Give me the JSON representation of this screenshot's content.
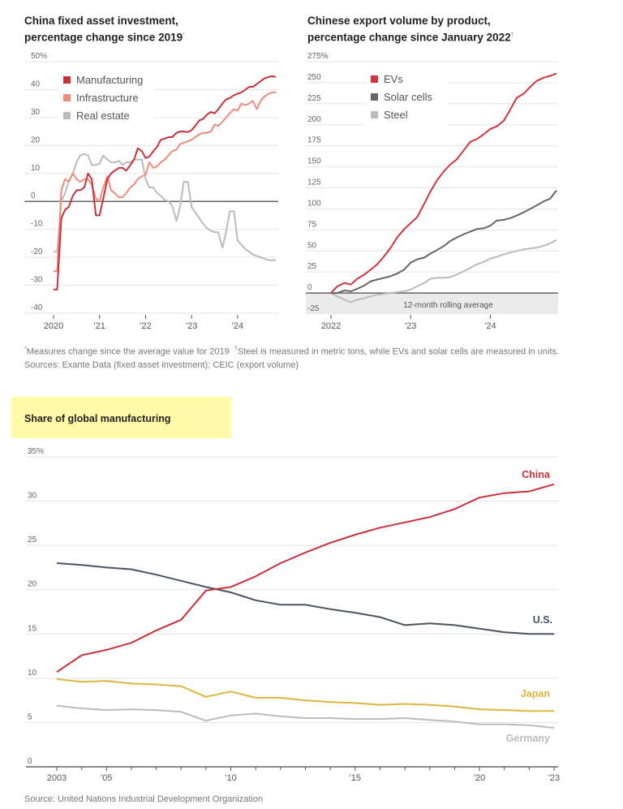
{
  "chart_data": [
    {
      "id": "fai",
      "type": "line",
      "title": "China fixed asset investment, percentage change since 2019",
      "title_line1": "China fixed asset investment,",
      "title_line2": "percentage change since 2019",
      "title_marker": "*",
      "xlabel": "",
      "ylabel": "",
      "ylim": [
        -40,
        50
      ],
      "yticks": [
        50,
        40,
        30,
        20,
        10,
        0,
        -10,
        -20,
        -30,
        -40
      ],
      "ytick_labels": [
        "50%",
        "40",
        "30",
        "20",
        "10",
        "0",
        "-10",
        "-20",
        "-30",
        "-40"
      ],
      "xlim": [
        2020.0,
        2024.83
      ],
      "xticks": [
        2020,
        2021,
        2022,
        2023,
        2024
      ],
      "xtick_labels": [
        "2020",
        "'21",
        "'22",
        "'23",
        "'24"
      ],
      "grid": true,
      "legend_position": "top-left",
      "series": [
        {
          "name": "Manufacturing",
          "color": "#c8313b",
          "x": [
            2020.0,
            2020.08,
            2020.17,
            2020.25,
            2020.33,
            2020.42,
            2020.5,
            2020.58,
            2020.67,
            2020.75,
            2020.83,
            2020.92,
            2021.0,
            2021.08,
            2021.17,
            2021.25,
            2021.33,
            2021.42,
            2021.5,
            2021.58,
            2021.67,
            2021.75,
            2021.83,
            2021.92,
            2022.0,
            2022.08,
            2022.17,
            2022.25,
            2022.33,
            2022.42,
            2022.5,
            2022.58,
            2022.67,
            2022.75,
            2022.83,
            2022.92,
            2023.0,
            2023.08,
            2023.17,
            2023.25,
            2023.33,
            2023.42,
            2023.5,
            2023.58,
            2023.67,
            2023.75,
            2023.83,
            2023.92,
            2024.0,
            2024.08,
            2024.17,
            2024.25,
            2024.33,
            2024.42,
            2024.5,
            2024.58,
            2024.67,
            2024.75,
            2024.83
          ],
          "values": [
            -31.5,
            -31.5,
            -6,
            -3,
            -2,
            2,
            4,
            4,
            5,
            10,
            8,
            -5,
            -5,
            1,
            8,
            10,
            11,
            12,
            12,
            11,
            13,
            15,
            19,
            18,
            15.5,
            16,
            18,
            19.5,
            22,
            22.5,
            23,
            23,
            24.5,
            25,
            25,
            24.8,
            25.5,
            27,
            29,
            29.5,
            31,
            32,
            31.5,
            33,
            35,
            36.5,
            37,
            38,
            38.5,
            39,
            40,
            41,
            41,
            42,
            43,
            44,
            44.5,
            44.8,
            44.5
          ]
        },
        {
          "name": "Infrastructure",
          "color": "#f08a7a",
          "x": [
            2020.0,
            2020.08,
            2020.17,
            2020.25,
            2020.33,
            2020.42,
            2020.5,
            2020.58,
            2020.67,
            2020.75,
            2020.83,
            2020.92,
            2021.0,
            2021.08,
            2021.17,
            2021.25,
            2021.33,
            2021.42,
            2021.5,
            2021.58,
            2021.67,
            2021.75,
            2021.83,
            2021.92,
            2022.0,
            2022.08,
            2022.17,
            2022.25,
            2022.33,
            2022.42,
            2022.5,
            2022.58,
            2022.67,
            2022.75,
            2022.83,
            2022.92,
            2023.0,
            2023.08,
            2023.17,
            2023.25,
            2023.33,
            2023.42,
            2023.5,
            2023.58,
            2023.67,
            2023.75,
            2023.83,
            2023.92,
            2024.0,
            2024.08,
            2024.17,
            2024.25,
            2024.33,
            2024.42,
            2024.5,
            2024.58,
            2024.67,
            2024.75,
            2024.83
          ],
          "values": [
            -25,
            -25,
            4,
            8,
            7,
            10,
            8,
            7,
            8,
            8,
            6,
            1,
            0,
            5,
            9,
            4,
            3,
            1.5,
            1.5,
            3,
            5,
            6,
            8,
            9,
            9.5,
            14,
            12,
            12.5,
            14,
            15,
            16.5,
            18,
            18.5,
            20.5,
            21,
            21.5,
            22,
            23,
            24,
            24.5,
            24.5,
            25,
            27.5,
            27,
            28.5,
            30,
            31.5,
            33,
            32.5,
            35,
            34.5,
            35,
            36,
            33,
            36,
            37.5,
            38.5,
            39,
            39
          ]
        },
        {
          "name": "Real estate",
          "color": "#bbbbbb",
          "x": [
            2020.0,
            2020.08,
            2020.17,
            2020.25,
            2020.33,
            2020.42,
            2020.5,
            2020.58,
            2020.67,
            2020.75,
            2020.83,
            2020.92,
            2021.0,
            2021.08,
            2021.17,
            2021.25,
            2021.33,
            2021.42,
            2021.5,
            2021.58,
            2021.67,
            2021.75,
            2021.83,
            2021.92,
            2022.0,
            2022.08,
            2022.17,
            2022.25,
            2022.33,
            2022.42,
            2022.5,
            2022.58,
            2022.67,
            2022.75,
            2022.83,
            2022.92,
            2023.0,
            2023.08,
            2023.17,
            2023.25,
            2023.33,
            2023.42,
            2023.5,
            2023.58,
            2023.67,
            2023.75,
            2023.83,
            2023.92,
            2024.0,
            2024.08,
            2024.17,
            2024.25,
            2024.33,
            2024.42,
            2024.5,
            2024.58,
            2024.67,
            2024.75,
            2024.83
          ],
          "values": [
            -18,
            -18,
            0,
            3,
            7,
            10,
            14,
            16.5,
            17,
            16.5,
            13,
            13,
            13.5,
            16.5,
            15,
            14,
            14,
            14.5,
            13,
            14,
            14,
            15,
            15,
            15,
            8,
            5,
            5,
            3,
            2,
            0.5,
            0,
            -1.5,
            -7,
            -2,
            7,
            7,
            -2,
            -4,
            -6,
            -8,
            -9.5,
            -10.5,
            -11,
            -11,
            -16.5,
            -11,
            -3.5,
            -3.5,
            -14,
            -15.5,
            -17,
            -18,
            -19,
            -19.5,
            -20,
            -20.5,
            -21,
            -21,
            -21
          ]
        }
      ]
    },
    {
      "id": "exports",
      "type": "line",
      "title": "Chinese export volume by product, percentage change since January 2022",
      "title_line1": "Chinese export volume by product,",
      "title_line2": "percentage change since January 2022",
      "title_marker": "†",
      "xlabel": "",
      "ylabel": "",
      "ylim": [
        -25,
        275
      ],
      "yticks": [
        275,
        250,
        225,
        200,
        175,
        150,
        125,
        100,
        75,
        50,
        25,
        0,
        -25
      ],
      "ytick_labels": [
        "275%",
        "250",
        "225",
        "200",
        "175",
        "150",
        "125",
        "100",
        "75",
        "50",
        "25",
        "0",
        "-25"
      ],
      "xlim": [
        2022.0,
        2024.83
      ],
      "xticks": [
        2022,
        2023,
        2024
      ],
      "xtick_labels": [
        "2022",
        "'23",
        "'24"
      ],
      "grid": true,
      "legend_position": "top-left",
      "annotation": "12-month rolling average",
      "series": [
        {
          "name": "EVs",
          "color": "#d0343f",
          "x": [
            2022.0,
            2022.08,
            2022.17,
            2022.25,
            2022.33,
            2022.42,
            2022.5,
            2022.58,
            2022.67,
            2022.75,
            2022.83,
            2022.92,
            2023.0,
            2023.08,
            2023.17,
            2023.25,
            2023.33,
            2023.42,
            2023.5,
            2023.58,
            2023.67,
            2023.75,
            2023.83,
            2023.92,
            2024.0,
            2024.08,
            2024.17,
            2024.25,
            2024.33,
            2024.42,
            2024.5,
            2024.58,
            2024.67,
            2024.75,
            2024.83
          ],
          "values": [
            0,
            8,
            12,
            10,
            17,
            22,
            28,
            34,
            44,
            54,
            66,
            76,
            83,
            90,
            106,
            121,
            134,
            145,
            153,
            159,
            170,
            180,
            183,
            189,
            195,
            198,
            205,
            218,
            232,
            237,
            245,
            252,
            256,
            258,
            261
          ]
        },
        {
          "name": "Solar cells",
          "color": "#666666",
          "x": [
            2022.0,
            2022.08,
            2022.17,
            2022.25,
            2022.33,
            2022.42,
            2022.5,
            2022.58,
            2022.67,
            2022.75,
            2022.83,
            2022.92,
            2023.0,
            2023.08,
            2023.17,
            2023.25,
            2023.33,
            2023.42,
            2023.5,
            2023.58,
            2023.67,
            2023.75,
            2023.83,
            2023.92,
            2024.0,
            2024.08,
            2024.17,
            2024.25,
            2024.33,
            2024.42,
            2024.5,
            2024.58,
            2024.67,
            2024.75,
            2024.83
          ],
          "values": [
            0,
            0,
            3,
            2,
            5,
            9,
            14,
            16,
            18,
            20,
            23,
            28,
            36,
            40,
            42,
            47,
            51,
            56,
            62,
            66,
            70,
            73,
            76,
            77,
            80,
            86,
            87,
            89,
            92,
            96,
            100,
            104,
            109,
            112,
            122
          ]
        },
        {
          "name": "Steel",
          "color": "#bbbbbb",
          "x": [
            2022.0,
            2022.08,
            2022.17,
            2022.25,
            2022.33,
            2022.42,
            2022.5,
            2022.58,
            2022.67,
            2022.75,
            2022.83,
            2022.92,
            2023.0,
            2023.08,
            2023.17,
            2023.25,
            2023.33,
            2023.42,
            2023.5,
            2023.58,
            2023.67,
            2023.75,
            2023.83,
            2023.92,
            2024.0,
            2024.08,
            2024.17,
            2024.25,
            2024.33,
            2024.42,
            2024.5,
            2024.58,
            2024.67,
            2024.75,
            2024.83
          ],
          "values": [
            0,
            -4,
            -8,
            -11,
            -8,
            -6,
            -4,
            -2,
            -1,
            0,
            1,
            2,
            4,
            8,
            12,
            17,
            18,
            18,
            19,
            22,
            26,
            30,
            34,
            37,
            41,
            43,
            46,
            48,
            50,
            52,
            53,
            54,
            56,
            59,
            63
          ]
        }
      ]
    },
    {
      "id": "share",
      "type": "line",
      "title": "Share of global manufacturing",
      "xlabel": "",
      "ylabel": "",
      "ylim": [
        0,
        35
      ],
      "yticks": [
        35,
        30,
        25,
        20,
        15,
        10,
        5,
        0
      ],
      "ytick_labels": [
        "35%",
        "30",
        "25",
        "20",
        "15",
        "10",
        "5",
        "0"
      ],
      "xlim": [
        2003,
        2023
      ],
      "xticks": [
        2003,
        2005,
        2010,
        2015,
        2020,
        2023
      ],
      "xtick_labels": [
        "2003",
        "'05",
        "'10",
        "'15",
        "'20",
        "'23"
      ],
      "minor_xticks": [
        2004,
        2006,
        2007,
        2008,
        2009,
        2011,
        2012,
        2013,
        2014,
        2016,
        2017,
        2018,
        2019,
        2021,
        2022
      ],
      "grid": true,
      "legend_position": "inline-right",
      "series": [
        {
          "name": "China",
          "color": "#c8313b",
          "x": [
            2003,
            2004,
            2005,
            2006,
            2007,
            2008,
            2009,
            2010,
            2011,
            2012,
            2013,
            2014,
            2015,
            2016,
            2017,
            2018,
            2019,
            2020,
            2021,
            2022,
            2023
          ],
          "values": [
            10.7,
            12.6,
            13.2,
            14.0,
            15.4,
            16.6,
            19.9,
            20.3,
            21.5,
            23.0,
            24.2,
            25.3,
            26.2,
            27.0,
            27.6,
            28.2,
            29.1,
            30.4,
            30.9,
            31.1,
            31.9
          ]
        },
        {
          "name": "U.S.",
          "color": "#4a5263",
          "x": [
            2003,
            2004,
            2005,
            2006,
            2007,
            2008,
            2009,
            2010,
            2011,
            2012,
            2013,
            2014,
            2015,
            2016,
            2017,
            2018,
            2019,
            2020,
            2021,
            2022,
            2023
          ],
          "values": [
            23.0,
            22.8,
            22.5,
            22.3,
            21.7,
            21.0,
            20.3,
            19.7,
            18.8,
            18.3,
            18.3,
            17.8,
            17.4,
            16.9,
            16.0,
            16.2,
            16.0,
            15.6,
            15.2,
            15.0,
            15.0
          ]
        },
        {
          "name": "Japan",
          "color": "#d9b740",
          "x": [
            2003,
            2004,
            2005,
            2006,
            2007,
            2008,
            2009,
            2010,
            2011,
            2012,
            2013,
            2014,
            2015,
            2016,
            2017,
            2018,
            2019,
            2020,
            2021,
            2022,
            2023
          ],
          "values": [
            9.9,
            9.6,
            9.7,
            9.4,
            9.3,
            9.1,
            7.9,
            8.5,
            7.8,
            7.8,
            7.5,
            7.3,
            7.2,
            7.0,
            7.1,
            7.0,
            6.8,
            6.5,
            6.4,
            6.3,
            6.3
          ]
        },
        {
          "name": "Germany",
          "color": "#bbbbbb",
          "x": [
            2003,
            2004,
            2005,
            2006,
            2007,
            2008,
            2009,
            2010,
            2011,
            2012,
            2013,
            2014,
            2015,
            2016,
            2017,
            2018,
            2019,
            2020,
            2021,
            2022,
            2023
          ],
          "values": [
            6.9,
            6.6,
            6.4,
            6.5,
            6.4,
            6.2,
            5.2,
            5.8,
            6.0,
            5.7,
            5.5,
            5.5,
            5.4,
            5.4,
            5.5,
            5.3,
            5.1,
            4.8,
            4.8,
            4.7,
            4.4
          ]
        }
      ]
    }
  ],
  "footnotes": {
    "note1_marker": "*",
    "note1": "Measures change since the average value for 2019",
    "note2_marker": "†",
    "note2": "Steel is measured in metric tons, while EVs and solar cells are measured in units.",
    "sources": "Sources: Exante Data (fixed asset investment); CEIC (export volume)"
  },
  "section2": {
    "title": "Share of global manufacturing",
    "highlight_color": "#fffaa8",
    "source": "Source: United Nations Industrial Development Organization"
  }
}
